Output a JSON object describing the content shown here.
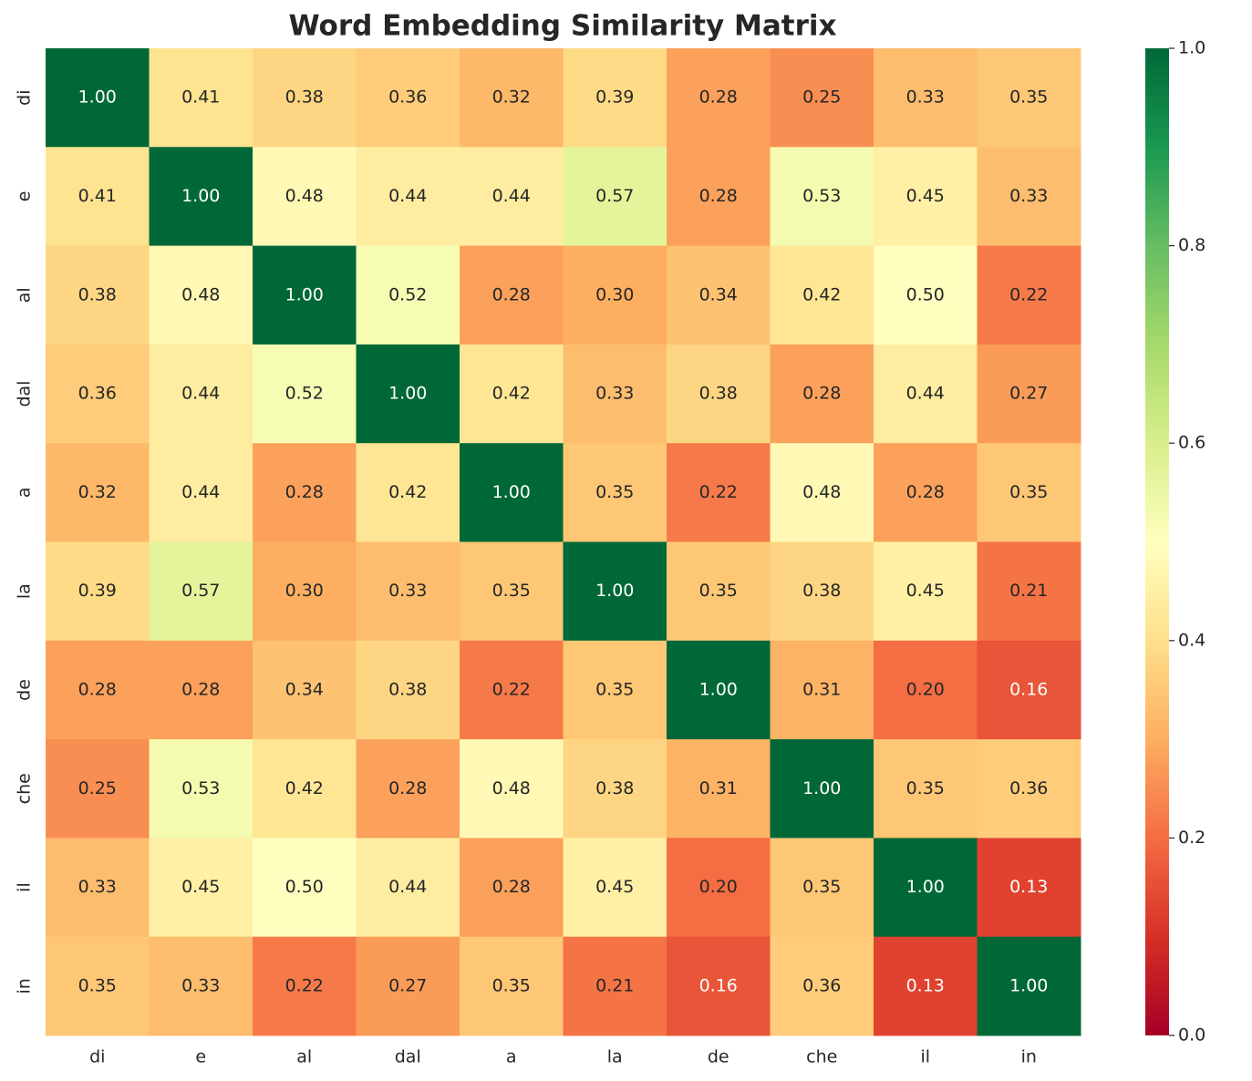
{
  "chart_data": {
    "type": "heatmap",
    "title": "Word Embedding Similarity Matrix",
    "categories": [
      "di",
      "e",
      "al",
      "dal",
      "a",
      "la",
      "de",
      "che",
      "il",
      "in"
    ],
    "y_categories": [
      "di",
      "e",
      "al",
      "dal",
      "a",
      "la",
      "de",
      "che",
      "il",
      "in"
    ],
    "values": [
      [
        1,
        0.41,
        0.38,
        0.36,
        0.32,
        0.39,
        0.28,
        0.25,
        0.33,
        0.35
      ],
      [
        0.41,
        1,
        0.48,
        0.44,
        0.44,
        0.57,
        0.28,
        0.53,
        0.45,
        0.33
      ],
      [
        0.38,
        0.48,
        1,
        0.52,
        0.28,
        0.3,
        0.34,
        0.42,
        0.5,
        0.22
      ],
      [
        0.36,
        0.44,
        0.52,
        1,
        0.42,
        0.33,
        0.38,
        0.28,
        0.44,
        0.27
      ],
      [
        0.32,
        0.44,
        0.28,
        0.42,
        1,
        0.35,
        0.22,
        0.48,
        0.28,
        0.35
      ],
      [
        0.39,
        0.57,
        0.3,
        0.33,
        0.35,
        1,
        0.35,
        0.38,
        0.45,
        0.21
      ],
      [
        0.28,
        0.28,
        0.34,
        0.38,
        0.22,
        0.35,
        1,
        0.31,
        0.2,
        0.16
      ],
      [
        0.25,
        0.53,
        0.42,
        0.28,
        0.48,
        0.38,
        0.31,
        1,
        0.35,
        0.36
      ],
      [
        0.33,
        0.45,
        0.5,
        0.44,
        0.28,
        0.45,
        0.2,
        0.35,
        1,
        0.13
      ],
      [
        0.35,
        0.33,
        0.22,
        0.27,
        0.35,
        0.21,
        0.16,
        0.36,
        0.13,
        1
      ]
    ],
    "value_labels": [
      [
        "1.00",
        "0.41",
        "0.38",
        "0.36",
        "0.32",
        "0.39",
        "0.28",
        "0.25",
        "0.33",
        "0.35"
      ],
      [
        "0.41",
        "1.00",
        "0.48",
        "0.44",
        "0.44",
        "0.57",
        "0.28",
        "0.53",
        "0.45",
        "0.33"
      ],
      [
        "0.38",
        "0.48",
        "1.00",
        "0.52",
        "0.28",
        "0.30",
        "0.34",
        "0.42",
        "0.50",
        "0.22"
      ],
      [
        "0.36",
        "0.44",
        "0.52",
        "1.00",
        "0.42",
        "0.33",
        "0.38",
        "0.28",
        "0.44",
        "0.27"
      ],
      [
        "0.32",
        "0.44",
        "0.28",
        "0.42",
        "1.00",
        "0.35",
        "0.22",
        "0.48",
        "0.28",
        "0.35"
      ],
      [
        "0.39",
        "0.57",
        "0.30",
        "0.33",
        "0.35",
        "1.00",
        "0.35",
        "0.38",
        "0.45",
        "0.21"
      ],
      [
        "0.28",
        "0.28",
        "0.34",
        "0.38",
        "0.22",
        "0.35",
        "1.00",
        "0.31",
        "0.20",
        "0.16"
      ],
      [
        "0.25",
        "0.53",
        "0.42",
        "0.28",
        "0.48",
        "0.38",
        "0.31",
        "1.00",
        "0.35",
        "0.36"
      ],
      [
        "0.33",
        "0.45",
        "0.50",
        "0.44",
        "0.28",
        "0.45",
        "0.20",
        "0.35",
        "1.00",
        "0.13"
      ],
      [
        "0.35",
        "0.33",
        "0.22",
        "0.27",
        "0.35",
        "0.21",
        "0.16",
        "0.36",
        "0.13",
        "1.00"
      ]
    ],
    "clim": [
      0,
      1
    ],
    "cticks": [
      {
        "value": 0,
        "label": "0.0"
      },
      0.2,
      0.4,
      0.6,
      0.8,
      {
        "value": 1,
        "label": "1.0"
      }
    ],
    "colormap": [
      "#a50026",
      "#d73027",
      "#f46d43",
      "#fdae61",
      "#fee08b",
      "#ffffbf",
      "#d9ef8b",
      "#a6d96a",
      "#66bd63",
      "#1a9850",
      "#006837"
    ]
  }
}
